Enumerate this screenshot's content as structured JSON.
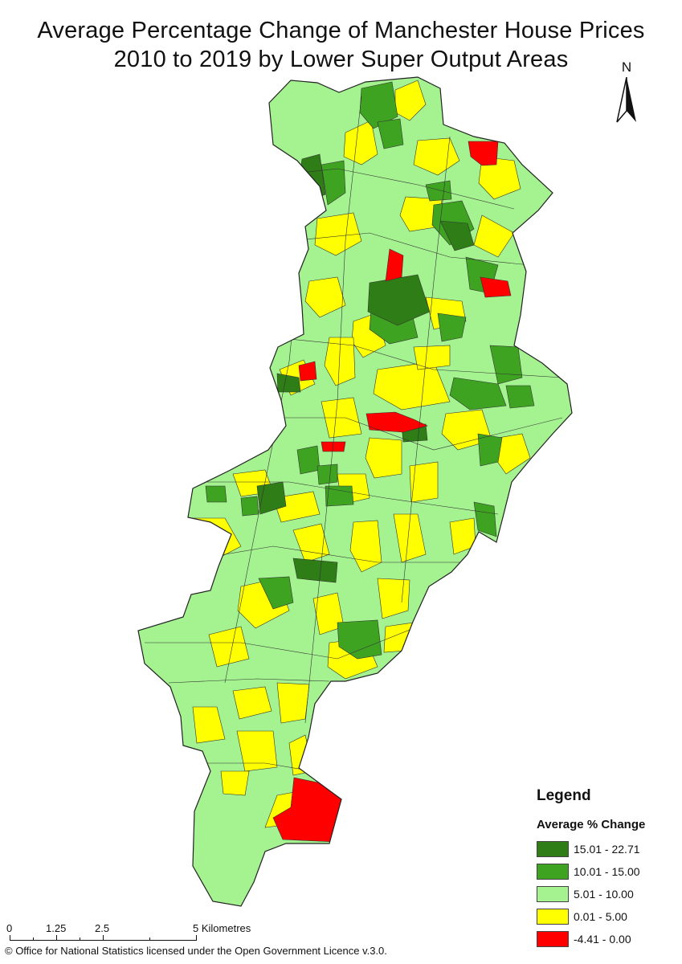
{
  "title_line1": "Average Percentage Change of Manchester House Prices",
  "title_line2": "2010 to 2019 by Lower Super Output Areas",
  "north_label": "N",
  "north_icon": "north-arrow-icon",
  "legend": {
    "title": "Legend",
    "subtitle": "Average % Change",
    "classes": [
      {
        "label": "15.01 - 22.71",
        "color": "#2e7d16",
        "min": 15.01,
        "max": 22.71
      },
      {
        "label": "10.01 - 15.00",
        "color": "#3ea321",
        "min": 10.01,
        "max": 15.0
      },
      {
        "label": "5.01 - 10.00",
        "color": "#a4f290",
        "min": 5.01,
        "max": 10.0
      },
      {
        "label": "0.01 - 5.00",
        "color": "#ffff00",
        "min": 0.01,
        "max": 5.0
      },
      {
        "label": "-4.41 - 0.00",
        "color": "#ff0000",
        "min": -4.41,
        "max": 0.0
      }
    ]
  },
  "scale": {
    "ticks": [
      "0",
      "1.25",
      "2.5",
      "5 Kilometres"
    ]
  },
  "credit": "© Office for National Statistics licensed under the Open Government Licence v.3.0."
}
